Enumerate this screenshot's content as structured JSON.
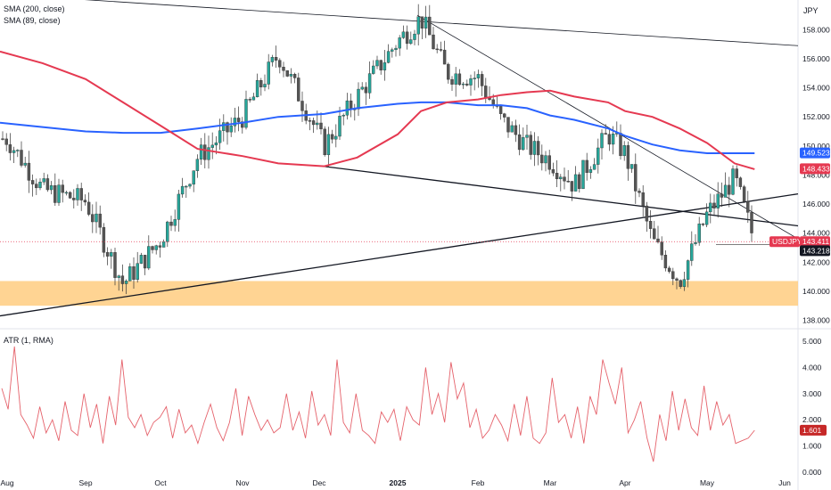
{
  "indicators": {
    "sma200_label": "SMA (200, close)",
    "sma89_label": "SMA (89, close)",
    "atr_label": "ATR (1, RMA)"
  },
  "currency": "JPY",
  "symbol": "USDJPY",
  "colors": {
    "up": "#26a69a",
    "down": "#555555",
    "sma200": "#2962ff",
    "sma89": "#e53951",
    "atr": "#e5626b",
    "zone": "#ffcc80",
    "trendline": "#131722"
  },
  "chart_data": [
    {
      "type": "line",
      "ylim": [
        137.6,
        159.8
      ],
      "y_ticks": [
        "158.000",
        "156.000",
        "154.000",
        "152.000",
        "150.000",
        "148.000",
        "146.000",
        "144.000",
        "142.000",
        "140.000",
        "138.000"
      ],
      "x_ticks": [
        "Aug",
        "Sep",
        "Oct",
        "Nov",
        "Dec",
        "2025",
        "Feb",
        "Mar",
        "Apr",
        "May",
        "Jun"
      ],
      "series": [
        {
          "name": "USDJPY",
          "x": [
            "2024-08-01",
            "2024-08-15",
            "2024-09-01",
            "2024-09-16",
            "2024-10-01",
            "2024-10-15",
            "2024-11-01",
            "2024-11-15",
            "2024-12-03",
            "2024-12-16",
            "2025-01-01",
            "2025-01-10",
            "2025-01-20",
            "2025-02-01",
            "2025-02-10",
            "2025-02-20",
            "2025-03-01",
            "2025-03-11",
            "2025-03-25",
            "2025-04-01",
            "2025-04-11",
            "2025-04-21",
            "2025-05-01",
            "2025-05-12",
            "2025-05-20"
          ],
          "values": [
            150.5,
            147.0,
            146.2,
            140.5,
            143.5,
            149.2,
            152.0,
            156.3,
            150.0,
            153.4,
            157.2,
            158.8,
            155.0,
            154.7,
            151.8,
            150.0,
            149.0,
            147.3,
            150.8,
            149.5,
            143.5,
            140.7,
            145.3,
            147.8,
            143.4
          ]
        },
        {
          "name": "SMA (200, close)",
          "values": [
            151.6,
            151.3,
            151.0,
            150.9,
            150.9,
            151.2,
            151.6,
            152.0,
            152.2,
            152.6,
            152.9,
            153.0,
            153.0,
            152.8,
            152.8,
            152.6,
            152.1,
            151.8,
            151.2,
            150.7,
            150.1,
            149.7,
            149.5,
            149.5,
            149.5
          ]
        },
        {
          "name": "SMA (89, close)",
          "values": [
            156.5,
            155.7,
            154.6,
            153.0,
            151.4,
            149.8,
            149.3,
            148.8,
            148.6,
            149.2,
            150.8,
            152.4,
            153.0,
            153.2,
            153.5,
            153.7,
            153.8,
            153.4,
            153.0,
            152.4,
            152.0,
            151.2,
            150.2,
            148.8,
            148.4
          ]
        }
      ],
      "current_price": 143.411,
      "sma200_last": 149.523,
      "sma89_last": 148.433,
      "prior_close_line": 143.218,
      "support_zone": [
        139.0,
        140.7
      ]
    },
    {
      "type": "line",
      "ylim": [
        0,
        5
      ],
      "y_ticks": [
        "5.000",
        "4.000",
        "3.000",
        "2.000",
        "1.000",
        "0.000"
      ],
      "series": [
        {
          "name": "ATR (1, RMA)",
          "values": [
            3.2,
            2.4,
            4.8,
            2.2,
            1.8,
            1.3,
            2.5,
            1.5,
            2.0,
            1.2,
            2.7,
            1.6,
            1.4,
            3.0,
            1.7,
            2.6,
            1.1,
            2.9,
            1.8,
            4.3,
            2.1,
            1.7,
            2.2,
            1.4,
            1.9,
            2.1,
            2.5,
            1.3,
            2.4,
            1.5,
            1.8,
            1.1,
            1.9,
            2.6,
            1.7,
            1.2,
            1.9,
            3.2,
            1.4,
            2.9,
            2.2,
            1.6,
            2.0,
            1.5,
            1.7,
            3.0,
            1.6,
            2.3,
            1.3,
            3.1,
            1.8,
            2.2,
            1.4,
            4.3,
            1.9,
            1.5,
            3.0,
            1.6,
            1.4,
            1.1,
            2.3,
            1.9,
            2.4,
            1.2,
            2.5,
            2.0,
            1.8,
            4.0,
            2.2,
            3.0,
            1.9,
            4.2,
            2.8,
            3.4,
            1.7,
            2.4,
            1.3,
            1.6,
            2.2,
            1.8,
            1.2,
            2.6,
            1.4,
            2.9,
            1.3,
            1.1,
            1.5,
            3.6,
            1.9,
            2.2,
            1.3,
            2.5,
            1.1,
            2.9,
            2.2,
            4.3,
            3.4,
            2.6,
            4.0,
            1.5,
            2.0,
            2.7,
            1.3,
            0.4,
            2.2,
            1.2,
            3.1,
            1.6,
            2.8,
            1.7,
            1.4,
            3.3,
            1.6,
            2.7,
            1.8,
            2.2,
            1.1,
            1.2,
            1.3,
            1.6
          ],
          "last": 1.601
        }
      ]
    }
  ]
}
